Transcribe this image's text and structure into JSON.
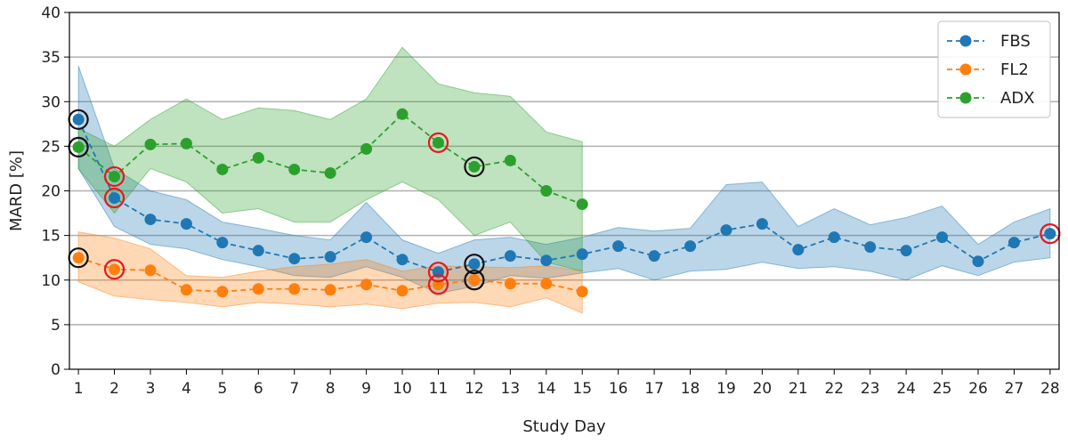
{
  "chart_data": {
    "type": "line",
    "title": "",
    "xlabel": "Study Day",
    "ylabel": "MARD [%]",
    "xlim": [
      0.75,
      28.25
    ],
    "ylim": [
      0,
      40
    ],
    "x_ticks": [
      1,
      2,
      3,
      4,
      5,
      6,
      7,
      8,
      9,
      10,
      11,
      12,
      13,
      14,
      15,
      16,
      17,
      18,
      19,
      20,
      21,
      22,
      23,
      24,
      25,
      26,
      27,
      28
    ],
    "y_ticks": [
      0,
      5,
      10,
      15,
      20,
      25,
      30,
      35,
      40
    ],
    "grid": "horizontal",
    "legend_position": "top-right",
    "series": [
      {
        "name": "FBS",
        "color": "#1f77b4",
        "x": [
          1,
          2,
          3,
          4,
          5,
          6,
          7,
          8,
          9,
          10,
          11,
          12,
          13,
          14,
          15,
          16,
          17,
          18,
          19,
          20,
          21,
          22,
          23,
          24,
          25,
          26,
          27,
          28
        ],
        "values": [
          28.0,
          19.2,
          16.8,
          16.3,
          14.2,
          13.3,
          12.4,
          12.6,
          14.8,
          12.3,
          10.9,
          11.8,
          12.7,
          12.2,
          12.9,
          13.8,
          12.7,
          13.8,
          15.6,
          16.3,
          13.4,
          14.8,
          13.7,
          13.3,
          14.8,
          12.1,
          14.2,
          15.2
        ],
        "band_upper": [
          34.0,
          22.5,
          20.0,
          19.0,
          16.5,
          15.8,
          15.0,
          14.5,
          18.7,
          14.5,
          13.0,
          14.5,
          14.8,
          14.0,
          14.8,
          15.9,
          15.5,
          15.8,
          20.7,
          21.0,
          16.0,
          18.0,
          16.2,
          17.0,
          18.3,
          14.0,
          16.5,
          18.0
        ],
        "band_lower": [
          22.5,
          16.0,
          14.0,
          13.5,
          12.3,
          11.5,
          10.5,
          10.3,
          11.5,
          10.3,
          8.5,
          9.3,
          10.5,
          10.2,
          10.8,
          11.3,
          10.0,
          11.0,
          11.2,
          12.0,
          11.3,
          11.5,
          11.0,
          10.0,
          11.6,
          10.5,
          12.0,
          12.5
        ]
      },
      {
        "name": "FL2",
        "color": "#ff7f0e",
        "x": [
          1,
          2,
          3,
          4,
          5,
          6,
          7,
          8,
          9,
          10,
          11,
          12,
          13,
          14,
          15
        ],
        "values": [
          12.5,
          11.2,
          11.1,
          8.9,
          8.7,
          9.0,
          9.0,
          8.9,
          9.5,
          8.8,
          9.5,
          10.0,
          9.6,
          9.6,
          8.7
        ],
        "band_upper": [
          15.4,
          14.7,
          13.5,
          10.5,
          10.3,
          11.0,
          11.5,
          11.8,
          12.3,
          11.0,
          11.6,
          11.5,
          11.4,
          11.6,
          11.0
        ],
        "band_lower": [
          9.8,
          8.2,
          7.8,
          7.5,
          7.0,
          7.5,
          7.3,
          7.0,
          7.3,
          6.8,
          7.4,
          7.5,
          7.0,
          8.0,
          6.3
        ]
      },
      {
        "name": "ADX",
        "color": "#2ca02c",
        "x": [
          1,
          2,
          3,
          4,
          5,
          6,
          7,
          8,
          9,
          10,
          11,
          12,
          13,
          14,
          15
        ],
        "values": [
          24.9,
          21.6,
          25.2,
          25.3,
          22.4,
          23.7,
          22.4,
          22.0,
          24.7,
          28.6,
          25.4,
          22.7,
          23.4,
          20.0,
          18.5
        ],
        "band_upper": [
          27.0,
          25.0,
          28.0,
          30.3,
          28.0,
          29.3,
          29.0,
          28.0,
          30.3,
          36.1,
          32.0,
          31.0,
          30.6,
          26.6,
          25.5
        ],
        "band_lower": [
          22.5,
          17.5,
          22.5,
          21.0,
          17.5,
          18.0,
          16.5,
          16.5,
          19.0,
          21.0,
          19.0,
          15.0,
          16.5,
          12.0,
          11.0
        ]
      }
    ],
    "highlight_markers": [
      {
        "x": 1,
        "y": 28.0,
        "ring": "black",
        "series": "FBS"
      },
      {
        "x": 1,
        "y": 24.9,
        "ring": "black",
        "series": "ADX"
      },
      {
        "x": 1,
        "y": 12.5,
        "ring": "black",
        "series": "FL2"
      },
      {
        "x": 2,
        "y": 21.6,
        "ring": "red",
        "series": "ADX"
      },
      {
        "x": 2,
        "y": 19.2,
        "ring": "red",
        "series": "FBS"
      },
      {
        "x": 2,
        "y": 11.2,
        "ring": "red",
        "series": "FL2"
      },
      {
        "x": 11,
        "y": 25.4,
        "ring": "red",
        "series": "ADX"
      },
      {
        "x": 11,
        "y": 10.9,
        "ring": "red",
        "series": "FBS"
      },
      {
        "x": 11,
        "y": 9.5,
        "ring": "red",
        "series": "FL2"
      },
      {
        "x": 12,
        "y": 22.7,
        "ring": "black",
        "series": "ADX"
      },
      {
        "x": 12,
        "y": 11.8,
        "ring": "black",
        "series": "FBS"
      },
      {
        "x": 12,
        "y": 10.0,
        "ring": "black",
        "series": "FL2"
      },
      {
        "x": 28,
        "y": 15.2,
        "ring": "red",
        "series": "FBS"
      }
    ],
    "ring_colors": {
      "black": "#111111",
      "red": "#e41a1c"
    },
    "grid_color": "#b0b0b0"
  }
}
